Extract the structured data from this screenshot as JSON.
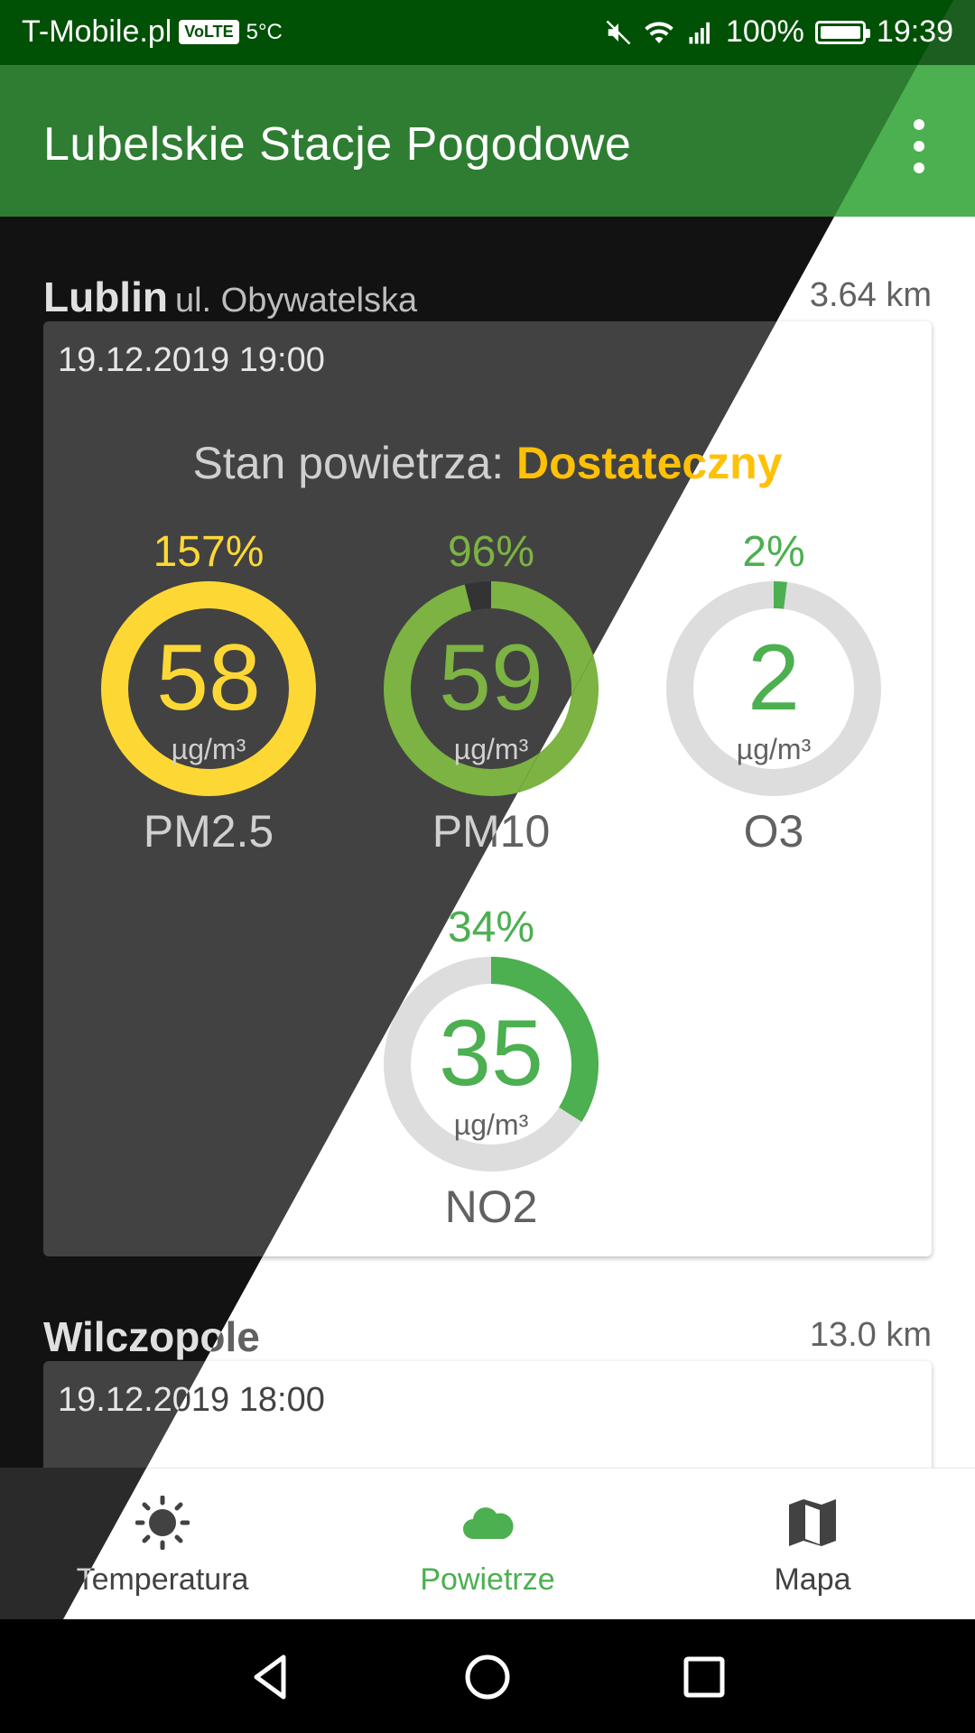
{
  "status_bar": {
    "carrier": "T-Mobile.pl",
    "volte": "VoLTE",
    "temp": "5°C",
    "battery": "100%",
    "time": "19:39"
  },
  "app_bar": {
    "title": "Lubelskie Stacje Pogodowe"
  },
  "stations": [
    {
      "name": "Lublin",
      "street": "ul. Obywatelska",
      "distance": "3.64 km",
      "time": "19.12.2019 19:00",
      "status_label": "Stan powietrza:",
      "status_value": "Dostateczny",
      "status_color": "#ffc107",
      "gauges": [
        {
          "name": "PM2.5",
          "value": "58",
          "unit": "µg/m³",
          "percent": "157%",
          "fill": 1.0,
          "color": "#fdd835"
        },
        {
          "name": "PM10",
          "value": "59",
          "unit": "µg/m³",
          "percent": "96%",
          "fill": 0.96,
          "color": "#7cb342"
        },
        {
          "name": "O3",
          "value": "2",
          "unit": "µg/m³",
          "percent": "2%",
          "fill": 0.02,
          "color": "#4caf50"
        },
        {
          "name": "NO2",
          "value": "35",
          "unit": "µg/m³",
          "percent": "34%",
          "fill": 0.34,
          "color": "#4caf50"
        }
      ]
    },
    {
      "name": "Wilczopole",
      "distance": "13.0 km",
      "time": "19.12.2019 18:00"
    }
  ],
  "bottom_nav": {
    "items": [
      {
        "label": "Temperatura",
        "icon": "sun-icon"
      },
      {
        "label": "Powietrze",
        "icon": "cloud-icon",
        "active": true
      },
      {
        "label": "Mapa",
        "icon": "map-icon"
      }
    ]
  },
  "system_nav": {
    "back": "back-icon",
    "home": "home-icon",
    "recents": "recents-icon"
  },
  "colors": {
    "primary": "#4caf50",
    "primary_dark": "#1b5e20",
    "accent_yellow": "#ffc107",
    "gauge_yellow": "#fdd835",
    "gauge_green": "#4caf50"
  }
}
